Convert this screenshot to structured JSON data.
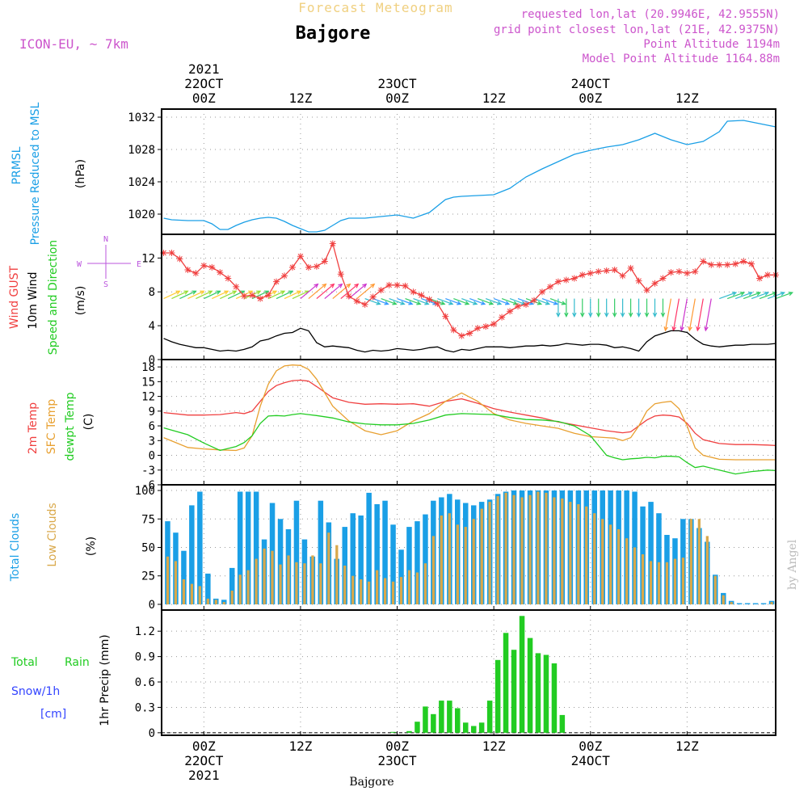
{
  "header": {
    "super_title": "Forecast Meteogram",
    "location": "Bajgore",
    "model": "ICON-EU, ~ 7km",
    "requested": "requested lon,lat (20.9946E, 42.9555N)",
    "grid_point": "grid point closest lon,lat (21E, 42.9375N)",
    "point_altitude": "Point Altitude 1194m",
    "model_altitude": "Model Point Altitude 1164.88m",
    "credit": "by Angel",
    "footer_location": "Bajgore"
  },
  "time_axis": {
    "ticks": [
      {
        "h": 0,
        "top": [
          "2021",
          "22OCT",
          "00Z"
        ],
        "bottom": [
          "00Z",
          "22OCT",
          "2021"
        ]
      },
      {
        "h": 12,
        "top": [
          "12Z"
        ],
        "bottom": [
          "12Z"
        ]
      },
      {
        "h": 24,
        "top": [
          "23OCT",
          "00Z"
        ],
        "bottom": [
          "00Z",
          "23OCT"
        ]
      },
      {
        "h": 36,
        "top": [
          "12Z"
        ],
        "bottom": [
          "12Z"
        ]
      },
      {
        "h": 48,
        "top": [
          "24OCT",
          "00Z"
        ],
        "bottom": [
          "00Z",
          "24OCT"
        ]
      },
      {
        "h": 60,
        "top": [
          "12Z"
        ],
        "bottom": [
          "12Z"
        ]
      }
    ],
    "start_h": -5.25,
    "end_h": 71
  },
  "colors": {
    "pressure": "#1a9fe6",
    "gust": "#f04040",
    "wind": "#000000",
    "t2m": "#f04040",
    "sfc": "#e8a030",
    "dewpt": "#22cc22",
    "total_cloud": "#1a9fe6",
    "low_cloud": "#d9a84a",
    "rain": "#22cc22",
    "snow": "#3344ff",
    "header": "#cc55cc",
    "super": "#f0d080",
    "compass": "#bb55dd",
    "credit": "#bbbbbb"
  },
  "panels": {
    "pressure": {
      "labels": [
        "PRMSL",
        "Pressure Reduced to MSL"
      ],
      "units": "(hPa)"
    },
    "wind": {
      "labels": [
        "Wind GUST",
        "10m Wind",
        "Speed and Direction"
      ],
      "units": "(m/s)",
      "compass": {
        "n": "N",
        "s": "S",
        "w": "W",
        "e": "E"
      }
    },
    "temp": {
      "labels": [
        "2m Temp",
        "SFC Temp",
        "dewpt Temp"
      ],
      "units": "(C)"
    },
    "clouds": {
      "labels": [
        "Total Clouds",
        "Low Clouds"
      ],
      "units": "(%)"
    },
    "precip": {
      "labels": [
        "Total",
        "Rain",
        "Snow/1h",
        "[cm]"
      ],
      "units": "1hr Precip (mm)"
    }
  },
  "chart_data": [
    {
      "type": "line",
      "title": "PRMSL Pressure Reduced to MSL",
      "ylabel": "(hPa)",
      "ylim": [
        1017.5,
        1033
      ],
      "yticks": [
        1020,
        1024,
        1028,
        1032
      ],
      "x": [
        -5,
        -4,
        -2,
        0,
        1,
        2,
        3,
        4,
        5,
        6,
        7,
        8,
        9,
        10,
        11,
        12,
        13,
        14,
        15,
        16,
        17,
        18,
        19,
        20,
        22,
        24,
        26,
        28,
        30,
        31,
        32,
        34,
        36,
        38,
        40,
        42,
        44,
        46,
        48,
        50,
        52,
        54,
        56,
        58,
        60,
        62,
        64,
        65,
        67,
        69,
        71
      ],
      "series": [
        {
          "name": "PRMSL",
          "values": [
            1019.5,
            1019.3,
            1019.2,
            1019.2,
            1018.8,
            1018.1,
            1018.1,
            1018.6,
            1019.0,
            1019.3,
            1019.5,
            1019.6,
            1019.5,
            1019.1,
            1018.6,
            1018.2,
            1017.8,
            1017.8,
            1018.0,
            1018.6,
            1019.2,
            1019.5,
            1019.5,
            1019.5,
            1019.7,
            1019.9,
            1019.5,
            1020.2,
            1021.8,
            1022.1,
            1022.2,
            1022.3,
            1022.4,
            1023.2,
            1024.6,
            1025.6,
            1026.5,
            1027.4,
            1027.9,
            1028.3,
            1028.6,
            1029.2,
            1030.0,
            1029.2,
            1028.6,
            1029.0,
            1030.2,
            1031.5,
            1031.6,
            1031.2,
            1030.8
          ]
        }
      ]
    },
    {
      "type": "line",
      "title": "Wind GUST / 10m Wind Speed and Direction",
      "ylabel": "(m/s)",
      "ylim": [
        0,
        14.8
      ],
      "yticks": [
        0,
        4,
        8,
        12
      ],
      "x": [
        -5,
        -4,
        -3,
        -2,
        -1,
        0,
        1,
        2,
        3,
        4,
        5,
        6,
        7,
        8,
        9,
        10,
        11,
        12,
        13,
        14,
        15,
        16,
        17,
        18,
        19,
        20,
        21,
        22,
        23,
        24,
        25,
        26,
        27,
        28,
        29,
        30,
        31,
        32,
        33,
        34,
        35,
        36,
        37,
        38,
        39,
        40,
        41,
        42,
        43,
        44,
        45,
        46,
        47,
        48,
        49,
        50,
        51,
        52,
        53,
        54,
        55,
        56,
        57,
        58,
        59,
        60,
        61,
        62,
        63,
        64,
        65,
        66,
        67,
        68,
        69,
        70,
        71
      ],
      "series": [
        {
          "name": "Wind GUST",
          "values": [
            12.6,
            12.6,
            11.9,
            10.6,
            10.2,
            11.1,
            10.9,
            10.3,
            9.6,
            8.6,
            7.5,
            7.6,
            7.2,
            7.6,
            9.2,
            9.9,
            10.9,
            12.2,
            10.9,
            11.0,
            11.6,
            13.7,
            10.1,
            7.5,
            6.9,
            6.5,
            7.4,
            8.2,
            8.8,
            8.8,
            8.7,
            8.0,
            7.6,
            7.1,
            6.6,
            5.1,
            3.5,
            2.8,
            3.1,
            3.7,
            3.9,
            4.2,
            5.0,
            5.7,
            6.3,
            6.5,
            7.0,
            8.0,
            8.6,
            9.2,
            9.4,
            9.6,
            10.0,
            10.2,
            10.4,
            10.5,
            10.6,
            9.9,
            10.8,
            9.3,
            8.2,
            9.0,
            9.6,
            10.3,
            10.4,
            10.2,
            10.4,
            11.6,
            11.2,
            11.2,
            11.2,
            11.3,
            11.6,
            11.3,
            9.6,
            10.0,
            10.0
          ]
        },
        {
          "name": "10m Wind",
          "values": [
            2.5,
            2.1,
            1.8,
            1.6,
            1.4,
            1.4,
            1.2,
            1.0,
            1.1,
            1.0,
            1.2,
            1.5,
            2.2,
            2.4,
            2.8,
            3.1,
            3.2,
            3.7,
            3.4,
            2.0,
            1.5,
            1.6,
            1.5,
            1.4,
            1.1,
            0.9,
            1.1,
            1.0,
            1.1,
            1.3,
            1.2,
            1.1,
            1.2,
            1.4,
            1.5,
            1.1,
            0.9,
            1.2,
            1.1,
            1.3,
            1.5,
            1.5,
            1.5,
            1.4,
            1.5,
            1.6,
            1.6,
            1.7,
            1.6,
            1.7,
            1.9,
            1.8,
            1.7,
            1.8,
            1.8,
            1.7,
            1.4,
            1.5,
            1.3,
            1.0,
            2.1,
            2.8,
            3.1,
            3.4,
            3.4,
            3.2,
            2.4,
            1.8,
            1.6,
            1.5,
            1.6,
            1.7,
            1.7,
            1.8,
            1.8,
            1.8,
            1.9
          ]
        }
      ],
      "direction_arrows": {
        "baseline_ms": 7.2,
        "count": 77,
        "note": "Wind direction arrows along the 10m wind; NE-pointing arrows first day, SE-pointing 23OCT, then south-pointing arrows 24OCT"
      }
    },
    {
      "type": "line",
      "title": "2m Temp / SFC Temp / dewpt Temp",
      "ylabel": "(C)",
      "ylim": [
        -6,
        19.5
      ],
      "yticks": [
        -6,
        -3,
        0,
        3,
        6,
        9,
        12,
        15,
        18
      ],
      "x": [
        -5,
        -2,
        0,
        2,
        4,
        5,
        6,
        7,
        8,
        9,
        10,
        11,
        12,
        13,
        14,
        16,
        18,
        20,
        22,
        24,
        26,
        28,
        30,
        32,
        34,
        36,
        38,
        40,
        42,
        44,
        46,
        48,
        50,
        51,
        52,
        53,
        54,
        55,
        56,
        57,
        58,
        59,
        60,
        61,
        62,
        64,
        66,
        68,
        70,
        71
      ],
      "series": [
        {
          "name": "2m Temp",
          "values": [
            8.7,
            8.2,
            8.2,
            8.3,
            8.7,
            8.5,
            9.0,
            11.0,
            13.0,
            14.2,
            14.8,
            15.2,
            15.3,
            15.1,
            14.0,
            11.7,
            10.8,
            10.4,
            10.5,
            10.4,
            10.5,
            10.0,
            11.0,
            11.5,
            10.6,
            9.5,
            8.8,
            8.2,
            7.6,
            6.8,
            6.2,
            5.6,
            5.0,
            4.8,
            4.6,
            4.8,
            6.0,
            7.2,
            8.0,
            8.2,
            8.1,
            7.8,
            6.5,
            4.5,
            3.2,
            2.4,
            2.2,
            2.2,
            2.1,
            2.0
          ]
        },
        {
          "name": "SFC Temp",
          "values": [
            3.6,
            1.6,
            1.3,
            1.1,
            1.0,
            1.5,
            4.0,
            10.0,
            14.5,
            17.2,
            18.2,
            18.4,
            18.3,
            17.5,
            15.5,
            10.0,
            7.0,
            5.0,
            4.2,
            5.0,
            7.0,
            8.5,
            11.0,
            12.7,
            11.0,
            8.5,
            7.2,
            6.5,
            6.0,
            5.5,
            4.5,
            3.8,
            3.6,
            3.5,
            3.0,
            3.6,
            6.0,
            9.0,
            10.5,
            10.8,
            11.0,
            9.5,
            6.0,
            1.5,
            0.0,
            -0.8,
            -0.9,
            -0.9,
            -0.9,
            -0.9
          ]
        },
        {
          "name": "dewpt Temp",
          "values": [
            5.6,
            4.2,
            2.5,
            1.0,
            1.8,
            2.6,
            4.0,
            6.5,
            8.0,
            8.1,
            8.0,
            8.3,
            8.5,
            8.3,
            8.1,
            7.6,
            6.8,
            6.4,
            6.2,
            6.2,
            6.5,
            7.2,
            8.2,
            8.5,
            8.4,
            8.3,
            7.7,
            7.3,
            7.2,
            6.9,
            6.0,
            4.0,
            0.0,
            -0.5,
            -0.9,
            -0.7,
            -0.6,
            -0.4,
            -0.5,
            -0.2,
            -0.2,
            -0.3,
            -1.5,
            -2.5,
            -2.2,
            -3.0,
            -3.8,
            -3.3,
            -3.0,
            -3.1
          ]
        }
      ]
    },
    {
      "type": "bar",
      "title": "Total Clouds / Low Clouds",
      "ylabel": "(%)",
      "ylim": [
        -5,
        105
      ],
      "yticks": [
        0,
        25,
        50,
        75,
        100
      ],
      "x_start": -4.5,
      "x_step": 1,
      "series": [
        {
          "name": "Total Clouds",
          "values": [
            73,
            63,
            47,
            87,
            99,
            27,
            5,
            4,
            32,
            99,
            99,
            99,
            57,
            89,
            75,
            66,
            91,
            57,
            42,
            91,
            72,
            40,
            68,
            80,
            78,
            98,
            88,
            91,
            70,
            48,
            68,
            73,
            79,
            91,
            94,
            97,
            92,
            89,
            87,
            90,
            92,
            97,
            99,
            100,
            100,
            100,
            100,
            100,
            100,
            100,
            100,
            100,
            100,
            100,
            100,
            100,
            100,
            100,
            99,
            86,
            90,
            80,
            61,
            58,
            75,
            75,
            67,
            55,
            26,
            10,
            3,
            1,
            1,
            1,
            1,
            3,
            0
          ]
        },
        {
          "name": "Low Clouds",
          "values": [
            42,
            38,
            22,
            18,
            16,
            5,
            4,
            2,
            12,
            26,
            30,
            40,
            49,
            47,
            35,
            43,
            37,
            36,
            43,
            36,
            63,
            52,
            34,
            25,
            22,
            20,
            30,
            23,
            20,
            24,
            30,
            28,
            36,
            60,
            78,
            80,
            70,
            68,
            75,
            84,
            90,
            95,
            98,
            96,
            94,
            96,
            99,
            98,
            94,
            93,
            90,
            88,
            86,
            80,
            75,
            70,
            66,
            58,
            50,
            44,
            38,
            37,
            37,
            40,
            41,
            75,
            75,
            60,
            25,
            8,
            2,
            0,
            0,
            0,
            0,
            2,
            0
          ]
        }
      ]
    },
    {
      "type": "bar",
      "title": "1hr Precip (mm)",
      "ylabel": "1hr Precip (mm)",
      "ylim": [
        -0.03,
        1.45
      ],
      "yticks": [
        0,
        0.3,
        0.6,
        0.9,
        1.2
      ],
      "x_start": -4.5,
      "x_step": 1,
      "series": [
        {
          "name": "Total Rain",
          "values": [
            0,
            0,
            0,
            0,
            0,
            0,
            0,
            0,
            0,
            0,
            0,
            0,
            0,
            0,
            0,
            0,
            0,
            0,
            0,
            0,
            0,
            0,
            0,
            0,
            0,
            0,
            0,
            0,
            0.01,
            0,
            0.02,
            0.13,
            0.31,
            0.22,
            0.38,
            0.38,
            0.29,
            0.12,
            0.08,
            0.12,
            0.38,
            0.86,
            1.18,
            0.98,
            1.38,
            1.12,
            0.94,
            0.92,
            0.82,
            0.21,
            0,
            0,
            0,
            0,
            0,
            0,
            0,
            0,
            0,
            0,
            0,
            0,
            0,
            0,
            0,
            0,
            0,
            0,
            0,
            0,
            0,
            0,
            0,
            0,
            0,
            0
          ]
        },
        {
          "name": "Snow/1h [cm]",
          "values": [
            0,
            0,
            0,
            0,
            0,
            0,
            0,
            0,
            0,
            0,
            0,
            0,
            0,
            0,
            0,
            0,
            0,
            0,
            0,
            0,
            0,
            0,
            0,
            0,
            0,
            0,
            0,
            0,
            0,
            0,
            0,
            0,
            0,
            0,
            0,
            0,
            0,
            0,
            0,
            0,
            0,
            0,
            0,
            0,
            0,
            0,
            0,
            0,
            0,
            0,
            0,
            0,
            0,
            0,
            0,
            0,
            0,
            0,
            0,
            0,
            0,
            0,
            0,
            0,
            0,
            0,
            0,
            0,
            0,
            0,
            0,
            0,
            0,
            0,
            0,
            0
          ]
        }
      ]
    }
  ]
}
